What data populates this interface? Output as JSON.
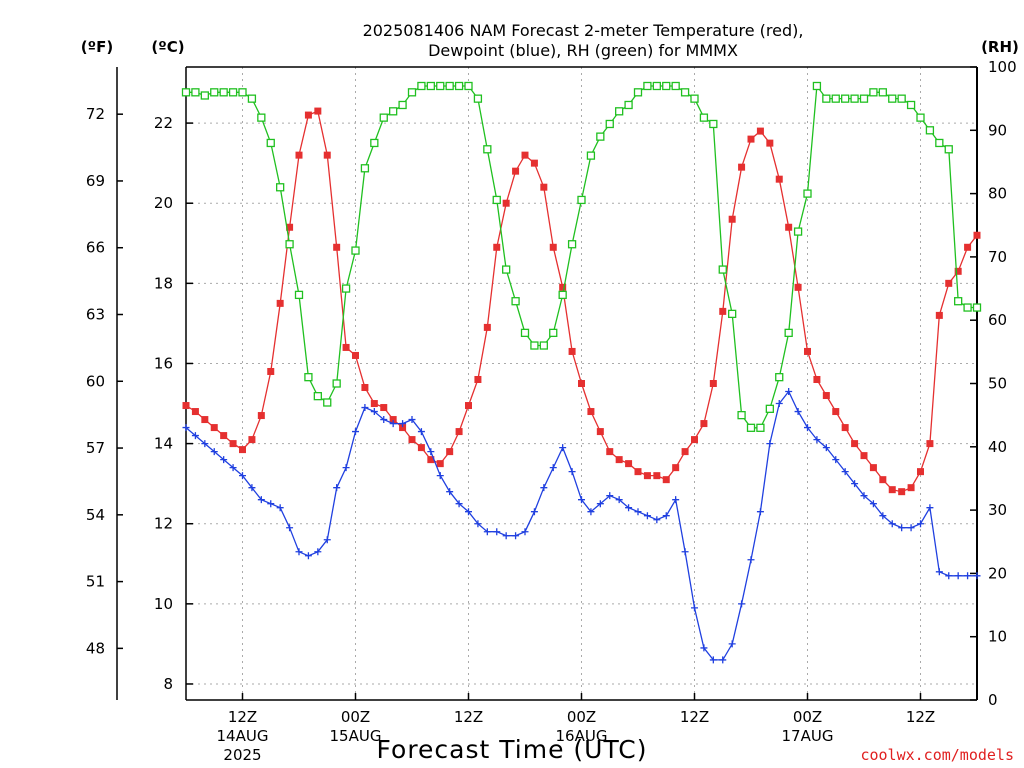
{
  "chart_data": {
    "type": "line",
    "title": "2025081406 NAM Forecast 2-meter Temperature (red),",
    "subtitle": "Dewpoint (blue), RH (green) for MMMX",
    "xlabel": "Forecast Time (UTC)",
    "y_left_f_label": "(ºF)",
    "y_left_c_label": "(ºC)",
    "y_right_label": "(RH)",
    "credit": "coolwx.com/models",
    "grid": true,
    "y_c_range": [
      7.6,
      23.4
    ],
    "y_rh_range": [
      0,
      100
    ],
    "x_range_hours": [
      0,
      84
    ],
    "y_c_ticks": [
      8,
      10,
      12,
      14,
      16,
      18,
      20,
      22
    ],
    "y_f_ticks": [
      48,
      51,
      54,
      57,
      60,
      63,
      66,
      69,
      72
    ],
    "y_rh_ticks": [
      0,
      10,
      20,
      30,
      40,
      50,
      60,
      70,
      80,
      90,
      100
    ],
    "x_ticks": [
      {
        "hour": 6,
        "label": "12Z",
        "sub1": "14AUG",
        "sub2": "2025"
      },
      {
        "hour": 18,
        "label": "00Z",
        "sub1": "15AUG",
        "sub2": ""
      },
      {
        "hour": 30,
        "label": "12Z",
        "sub1": "",
        "sub2": ""
      },
      {
        "hour": 42,
        "label": "00Z",
        "sub1": "16AUG",
        "sub2": ""
      },
      {
        "hour": 54,
        "label": "12Z",
        "sub1": "",
        "sub2": ""
      },
      {
        "hour": 66,
        "label": "00Z",
        "sub1": "17AUG",
        "sub2": ""
      },
      {
        "hour": 78,
        "label": "12Z",
        "sub1": "",
        "sub2": ""
      }
    ],
    "series": [
      {
        "name": "Temperature",
        "unit": "C",
        "color": "#e53030",
        "marker": "filled-square",
        "x": [
          0,
          1,
          2,
          3,
          4,
          5,
          6,
          7,
          8,
          9,
          10,
          11,
          12,
          13,
          14,
          15,
          16,
          17,
          18,
          19,
          20,
          21,
          22,
          23,
          24,
          25,
          26,
          27,
          28,
          29,
          30,
          31,
          32,
          33,
          34,
          35,
          36,
          37,
          38,
          39,
          40,
          41,
          42,
          43,
          44,
          45,
          46,
          47,
          48,
          49,
          50,
          51,
          52,
          53,
          54,
          55,
          56,
          57,
          58,
          59,
          60,
          61,
          62,
          63,
          64,
          65,
          66,
          67,
          68,
          69,
          70,
          71,
          72,
          73,
          74,
          75,
          76,
          77,
          78,
          79,
          80,
          81,
          82,
          83,
          84
        ],
        "values": [
          14.95,
          14.8,
          14.6,
          14.4,
          14.2,
          14.0,
          13.85,
          14.1,
          14.7,
          15.8,
          17.5,
          19.4,
          21.2,
          22.2,
          22.3,
          21.2,
          18.9,
          16.4,
          16.2,
          15.4,
          15.0,
          14.9,
          14.6,
          14.4,
          14.1,
          13.9,
          13.6,
          13.5,
          13.8,
          14.3,
          14.95,
          15.6,
          16.9,
          18.9,
          20.0,
          20.8,
          21.2,
          21.0,
          20.4,
          18.9,
          17.9,
          16.3,
          15.5,
          14.8,
          14.3,
          13.8,
          13.6,
          13.5,
          13.3,
          13.2,
          13.2,
          13.1,
          13.4,
          13.8,
          14.1,
          14.5,
          15.5,
          17.3,
          19.6,
          20.9,
          21.6,
          21.8,
          21.5,
          20.6,
          19.4,
          17.9,
          16.3,
          15.6,
          15.2,
          14.8,
          14.4,
          14.0,
          13.7,
          13.4,
          13.1,
          12.85,
          12.8,
          12.9,
          13.3,
          14.0,
          17.2,
          18.0,
          18.3,
          18.9,
          19.2
        ],
        "display_count": 85
      },
      {
        "name": "Dewpoint",
        "unit": "C",
        "color": "#2040e0",
        "marker": "plus",
        "x": [
          0,
          1,
          2,
          3,
          4,
          5,
          6,
          7,
          8,
          9,
          10,
          11,
          12,
          13,
          14,
          15,
          16,
          17,
          18,
          19,
          20,
          21,
          22,
          23,
          24,
          25,
          26,
          27,
          28,
          29,
          30,
          31,
          32,
          33,
          34,
          35,
          36,
          37,
          38,
          39,
          40,
          41,
          42,
          43,
          44,
          45,
          46,
          47,
          48,
          49,
          50,
          51,
          52,
          53,
          54,
          55,
          56,
          57,
          58,
          59,
          60,
          61,
          62,
          63,
          64,
          65,
          66,
          67,
          68,
          69,
          70,
          71,
          72,
          73,
          74,
          75,
          76,
          77,
          78,
          79,
          80,
          81,
          82,
          83,
          84
        ],
        "values": [
          14.4,
          14.2,
          14.0,
          13.8,
          13.6,
          13.4,
          13.2,
          12.9,
          12.6,
          12.5,
          12.4,
          11.9,
          11.3,
          11.2,
          11.3,
          11.6,
          12.9,
          13.4,
          14.3,
          14.9,
          14.8,
          14.6,
          14.5,
          14.5,
          14.6,
          14.3,
          13.8,
          13.2,
          12.8,
          12.5,
          12.3,
          12.0,
          11.8,
          11.8,
          11.7,
          11.7,
          11.8,
          12.3,
          12.9,
          13.4,
          13.9,
          13.3,
          12.6,
          12.3,
          12.5,
          12.7,
          12.6,
          12.4,
          12.3,
          12.2,
          12.1,
          12.2,
          12.6,
          11.3,
          9.9,
          8.9,
          8.6,
          8.6,
          9.0,
          10.0,
          11.1,
          12.3,
          14.0,
          15.0,
          15.3,
          14.8,
          14.4,
          14.1,
          13.9,
          13.6,
          13.3,
          13.0,
          12.7,
          12.5,
          12.2,
          12.0,
          11.9,
          11.9,
          12.0,
          12.4,
          10.8,
          10.7,
          10.7,
          10.7,
          10.7
        ],
        "display_count": 85
      },
      {
        "name": "RH",
        "unit": "%",
        "color": "#20c020",
        "marker": "open-square",
        "x": [
          0,
          1,
          2,
          3,
          4,
          5,
          6,
          7,
          8,
          9,
          10,
          11,
          12,
          13,
          14,
          15,
          16,
          17,
          18,
          19,
          20,
          21,
          22,
          23,
          24,
          25,
          26,
          27,
          28,
          29,
          30,
          31,
          32,
          33,
          34,
          35,
          36,
          37,
          38,
          39,
          40,
          41,
          42,
          43,
          44,
          45,
          46,
          47,
          48,
          49,
          50,
          51,
          52,
          53,
          54,
          55,
          56,
          57,
          58,
          59,
          60,
          61,
          62,
          63,
          64,
          65,
          66,
          67,
          68,
          69,
          70,
          71,
          72,
          73,
          74,
          75,
          76,
          77,
          78,
          79,
          80,
          81,
          82,
          83,
          84
        ],
        "values": [
          96,
          96,
          95.5,
          96,
          96,
          96,
          96,
          95,
          92,
          88,
          81,
          72,
          64,
          51,
          48,
          47,
          50,
          65,
          71,
          84,
          88,
          92,
          93,
          94,
          96,
          97,
          97,
          97,
          97,
          97,
          97,
          95,
          87,
          79,
          68,
          63,
          58,
          56,
          56,
          58,
          64,
          72,
          79,
          86,
          89,
          91,
          93,
          94,
          96,
          97,
          97,
          97,
          97,
          96,
          95,
          92,
          91,
          68,
          61,
          45,
          43,
          43,
          46,
          51,
          58,
          74,
          80,
          97,
          95,
          95,
          95,
          95,
          95,
          96,
          96,
          95,
          95,
          94,
          92,
          90,
          88,
          87,
          63,
          62,
          62
        ],
        "display_count": 85
      }
    ]
  }
}
